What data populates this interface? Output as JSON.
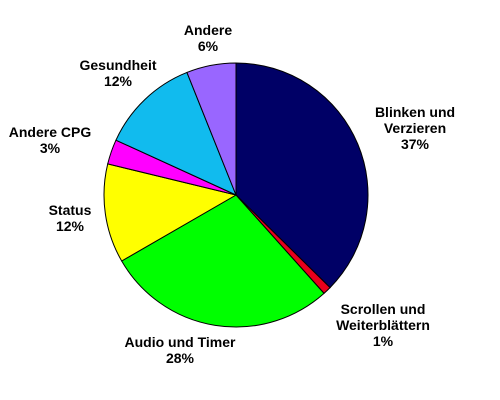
{
  "chart_data": {
    "type": "pie",
    "categories": [
      "Blinken und Verzieren",
      "Scrollen und Weiterblättern",
      "Audio und Timer",
      "Status",
      "Andere CPG",
      "Gesundheit",
      "Andere"
    ],
    "values": [
      37,
      1,
      28,
      12,
      3,
      12,
      6
    ],
    "value_labels": [
      "37%",
      "1%",
      "28%",
      "12%",
      "3%",
      "12%",
      "6%"
    ],
    "colors": [
      "#000066",
      "#e8001c",
      "#00ff00",
      "#ffff00",
      "#ff00ff",
      "#11bbee",
      "#9966ff"
    ]
  }
}
